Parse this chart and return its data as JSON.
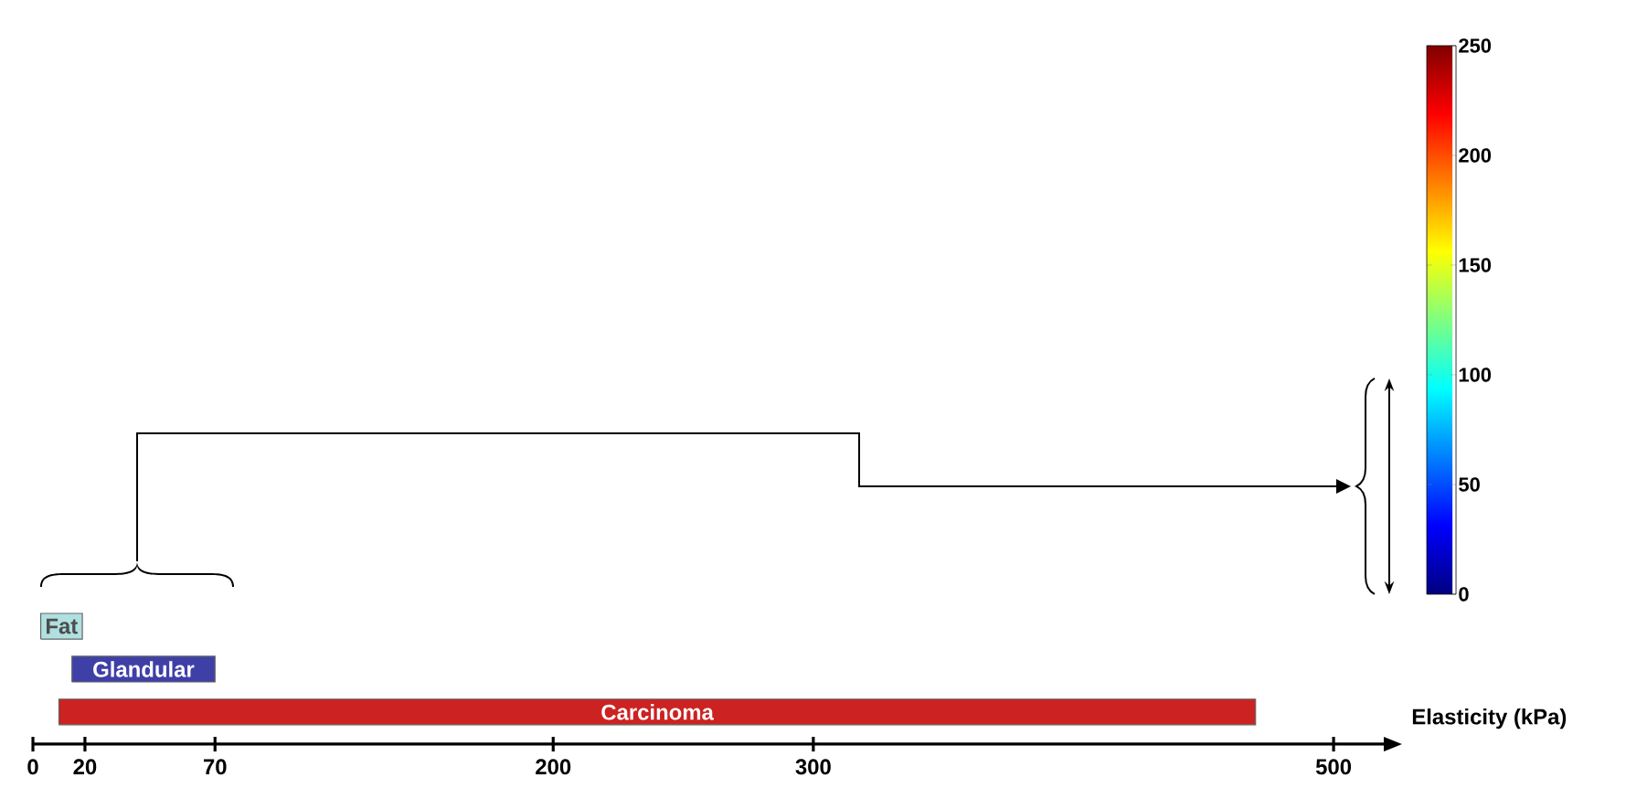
{
  "chart_data": {
    "type": "bar",
    "orientation": "horizontal",
    "categories": [
      "Fat",
      "Glandular",
      "Carcinoma"
    ],
    "base": [
      3,
      15,
      10
    ],
    "values": [
      16,
      55,
      460
    ],
    "colors": [
      "#b0e0e0",
      "#3f3fa8",
      "#cc2222"
    ],
    "xlabel": "Elasticity (kPa)",
    "xlim": [
      0,
      520
    ],
    "xticks": [
      0,
      20,
      70,
      200,
      300,
      500
    ],
    "clim": [
      0,
      250
    ],
    "cticks": [
      0,
      50,
      100,
      150,
      200,
      250
    ]
  }
}
